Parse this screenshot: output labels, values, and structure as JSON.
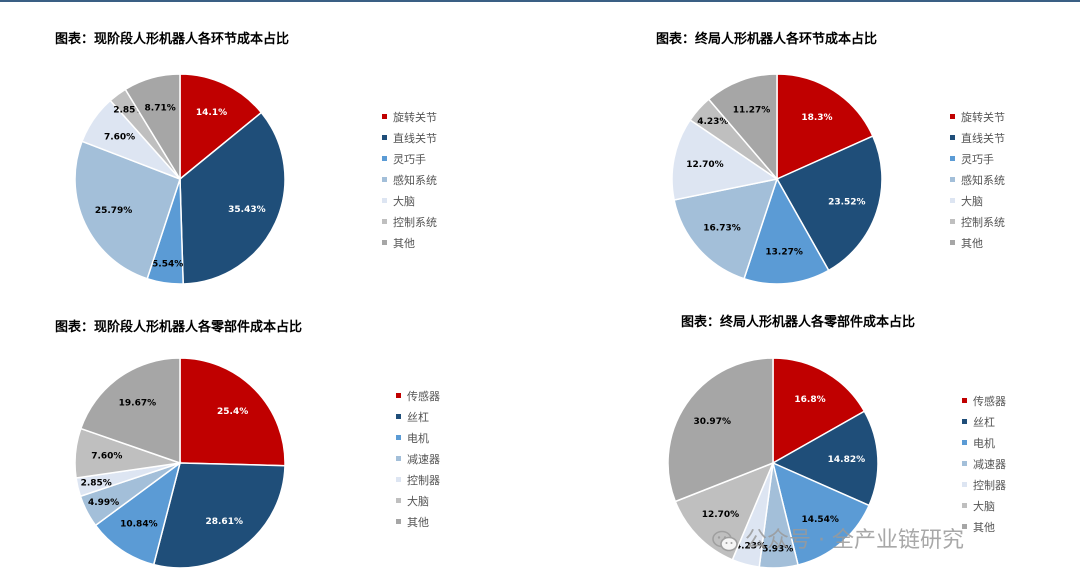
{
  "chart_data": [
    {
      "type": "pie",
      "title": "图表：现阶段人形机器人各环节成本占比",
      "categories": [
        "旋转关节",
        "直线关节",
        "灵巧手",
        "感知系统",
        "大脑",
        "控制系统",
        "其他"
      ],
      "values": [
        14.1,
        35.43,
        5.54,
        25.79,
        7.6,
        2.85,
        8.71
      ],
      "labels": [
        "14.1%",
        "35.43%",
        "5.54%",
        "25.79%",
        "7.60%",
        "2.85%",
        "8.71%"
      ],
      "legend_position": "right"
    },
    {
      "type": "pie",
      "title": "图表：终局人形机器人各环节成本占比",
      "categories": [
        "旋转关节",
        "直线关节",
        "灵巧手",
        "感知系统",
        "大脑",
        "控制系统",
        "其他"
      ],
      "values": [
        18.3,
        23.52,
        13.27,
        16.73,
        12.7,
        4.23,
        11.27
      ],
      "labels": [
        "18.3%",
        "23.52%",
        "13.27%",
        "16.73%",
        "12.70%",
        "4.23%",
        "11.27%"
      ],
      "legend_position": "right"
    },
    {
      "type": "pie",
      "title": "图表：现阶段人形机器人各零部件成本占比",
      "categories": [
        "传感器",
        "丝杠",
        "电机",
        "减速器",
        "控制器",
        "大脑",
        "其他"
      ],
      "values": [
        25.4,
        28.61,
        10.84,
        4.99,
        2.85,
        7.6,
        19.67
      ],
      "labels": [
        "25.4%",
        "28.61%",
        "10.84%",
        "4.99%",
        "2.85%",
        "7.60%",
        "19.67%"
      ],
      "legend_position": "right"
    },
    {
      "type": "pie",
      "title": "图表：终局人形机器人各零部件成本占比",
      "categories": [
        "传感器",
        "丝杠",
        "电机",
        "减速器",
        "控制器",
        "大脑",
        "其他"
      ],
      "values": [
        16.8,
        14.82,
        14.54,
        5.93,
        4.23,
        12.7,
        30.97
      ],
      "labels": [
        "16.8%",
        "14.82%",
        "14.54%",
        "5.93%",
        "4.23%",
        "12.70%",
        "30.97%"
      ],
      "legend_position": "right"
    }
  ],
  "colors": [
    "#c00000",
    "#1f4e79",
    "#5b9bd5",
    "#a3bfd9",
    "#dde5f2",
    "#bfbfbf",
    "#a6a6a6"
  ],
  "label_colors": [
    "#ffffff",
    "#ffffff",
    "#000000",
    "#000000",
    "#000000",
    "#000000",
    "#000000"
  ],
  "watermark": {
    "icon": "wechat-icon",
    "text": "公众号 · 全产业链研究"
  }
}
